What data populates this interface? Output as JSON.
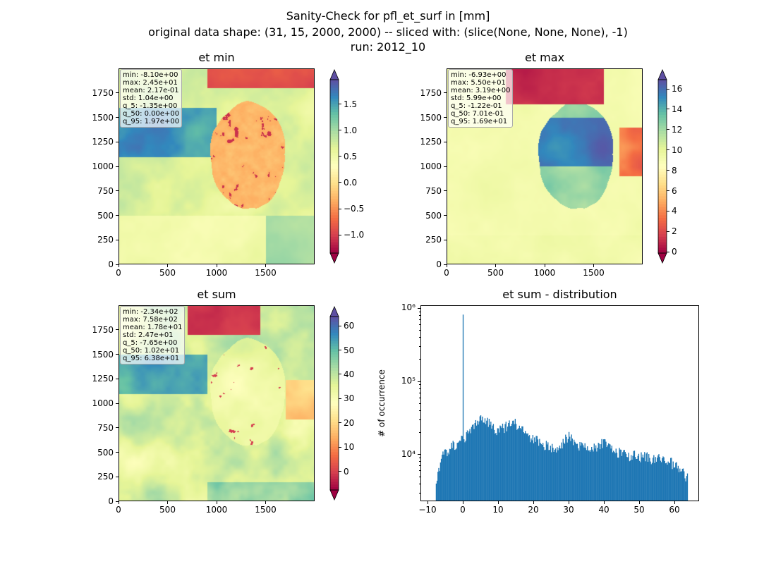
{
  "figure": {
    "suptitle_lines": [
      "Sanity-Check for pfl_et_surf in [mm]",
      "original data shape: (31, 15, 2000, 2000) -- sliced with: (slice(None, None, None), -1)",
      "run: 2012_10"
    ]
  },
  "colors": {
    "bar": "#1f77b4",
    "spectral": [
      "#9e0142",
      "#d53e4f",
      "#f46d43",
      "#fdae61",
      "#fee08b",
      "#ffffbf",
      "#e6f598",
      "#abdda4",
      "#66c2a5",
      "#3288bd",
      "#5e4fa2"
    ]
  },
  "chart_data": [
    {
      "type": "heatmap",
      "title": "et min",
      "xticks": [
        "0",
        "500",
        "1000",
        "1500"
      ],
      "yticks": [
        "0",
        "250",
        "500",
        "750",
        "1000",
        "1250",
        "1500",
        "1750"
      ],
      "xlim": [
        0,
        2000
      ],
      "ylim": [
        0,
        2000
      ],
      "colorbar": {
        "min": -1.35,
        "max": 1.97,
        "ticks": [
          "1.5",
          "1.0",
          "0.5",
          "0.0",
          "−0.5",
          "−1.0"
        ],
        "tick_values": [
          1.5,
          1.0,
          0.5,
          0.0,
          -0.5,
          -1.0
        ],
        "extend": "both"
      },
      "stats": [
        "min: -8.10e+00",
        "max: 2.45e+01",
        "mean: 2.17e-01",
        "std: 1.04e+00",
        "q_5: -1.35e+00",
        "q_50: 0.00e+00",
        "q_95: 1.97e+00"
      ]
    },
    {
      "type": "heatmap",
      "title": "et max",
      "xticks": [
        "0",
        "500",
        "1000",
        "1500"
      ],
      "yticks": [
        "0",
        "250",
        "500",
        "750",
        "1000",
        "1250",
        "1500",
        "1750"
      ],
      "xlim": [
        0,
        2000
      ],
      "ylim": [
        0,
        2000
      ],
      "colorbar": {
        "min": -0.122,
        "max": 16.9,
        "ticks": [
          "16",
          "14",
          "12",
          "10",
          "8",
          "6",
          "4",
          "2",
          "0"
        ],
        "tick_values": [
          16,
          14,
          12,
          10,
          8,
          6,
          4,
          2,
          0
        ],
        "extend": "both"
      },
      "stats": [
        "min: -6.93e+00",
        "max: 5.50e+01",
        "mean: 3.19e+00",
        "std: 5.99e+00",
        "q_5: -1.22e-01",
        "q_50: 7.01e-01",
        "q_95: 1.69e+01"
      ]
    },
    {
      "type": "heatmap",
      "title": "et sum",
      "xticks": [
        "0",
        "500",
        "1000",
        "1500"
      ],
      "yticks": [
        "0",
        "250",
        "500",
        "750",
        "1000",
        "1250",
        "1500",
        "1750"
      ],
      "xlim": [
        0,
        2000
      ],
      "ylim": [
        0,
        2000
      ],
      "colorbar": {
        "min": -7.65,
        "max": 63.8,
        "ticks": [
          "60",
          "50",
          "40",
          "30",
          "20",
          "10",
          "0"
        ],
        "tick_values": [
          60,
          50,
          40,
          30,
          20,
          10,
          0
        ],
        "extend": "both"
      },
      "stats": [
        "min: -2.34e+02",
        "max: 7.58e+02",
        "mean: 1.78e+01",
        "std: 2.47e+01",
        "q_5: -7.65e+00",
        "q_50: 1.02e+01",
        "q_95: 6.38e+01"
      ]
    },
    {
      "type": "bar",
      "title": "et sum - distribution",
      "xlabel": "",
      "ylabel": "# of occurrence",
      "yscale": "log",
      "xlim": [
        -12,
        67
      ],
      "ylim": [
        2300,
        1100000
      ],
      "xticks": [
        "−10",
        "0",
        "10",
        "20",
        "30",
        "40",
        "50",
        "60"
      ],
      "xtick_values": [
        -10,
        0,
        10,
        20,
        30,
        40,
        50,
        60
      ],
      "yticks": [
        "10⁴",
        "10⁵",
        "10⁶"
      ],
      "ytick_values": [
        10000,
        100000,
        1000000
      ],
      "bin_range": [
        -7.65,
        63.8
      ],
      "peaks": [
        {
          "x": 0,
          "y": 820000
        }
      ],
      "profile": [
        {
          "x": -7.6,
          "y": 3800
        },
        {
          "x": -6,
          "y": 9000
        },
        {
          "x": -3,
          "y": 13500
        },
        {
          "x": -0.5,
          "y": 15500
        },
        {
          "x": 2,
          "y": 21000
        },
        {
          "x": 5,
          "y": 32000
        },
        {
          "x": 8,
          "y": 26000
        },
        {
          "x": 10,
          "y": 21000
        },
        {
          "x": 13,
          "y": 25000
        },
        {
          "x": 15,
          "y": 27000
        },
        {
          "x": 18,
          "y": 18500
        },
        {
          "x": 21,
          "y": 15500
        },
        {
          "x": 24,
          "y": 13000
        },
        {
          "x": 26,
          "y": 11500
        },
        {
          "x": 28,
          "y": 13500
        },
        {
          "x": 30,
          "y": 18000
        },
        {
          "x": 32,
          "y": 14000
        },
        {
          "x": 35,
          "y": 12500
        },
        {
          "x": 38,
          "y": 13000
        },
        {
          "x": 40,
          "y": 14500
        },
        {
          "x": 43,
          "y": 11000
        },
        {
          "x": 46,
          "y": 10000
        },
        {
          "x": 50,
          "y": 9500
        },
        {
          "x": 53,
          "y": 9000
        },
        {
          "x": 56,
          "y": 8800
        },
        {
          "x": 59,
          "y": 7800
        },
        {
          "x": 62,
          "y": 6000
        },
        {
          "x": 63.8,
          "y": 4800
        }
      ]
    }
  ]
}
